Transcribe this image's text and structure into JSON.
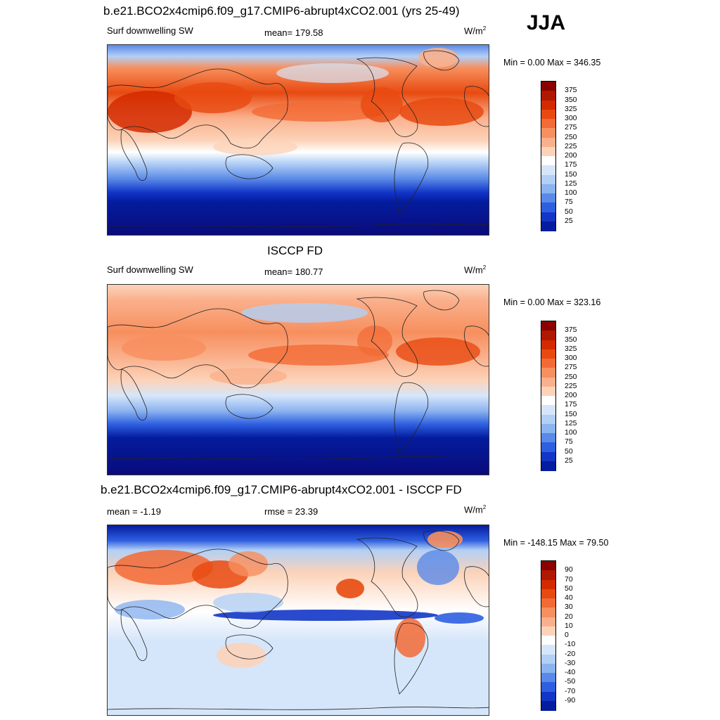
{
  "season": "JJA",
  "panels": [
    {
      "title": "b.e21.BCO2x4cmip6.f09_g17.CMIP6-abrupt4xCO2.001 (yrs 25-49)",
      "left_label": "Surf downwelling SW",
      "center_label": "mean= 179.58",
      "units": "W/m",
      "units_sup": "2",
      "minmax": "Min =   0.00 Max = 346.35"
    },
    {
      "title": "ISCCP FD",
      "left_label": "Surf downwelling SW",
      "center_label": "mean= 180.77",
      "units": "W/m",
      "units_sup": "2",
      "minmax": "Min =   0.00 Max = 323.16"
    },
    {
      "title": "b.e21.BCO2x4cmip6.f09_g17.CMIP6-abrupt4xCO2.001 - ISCCP FD",
      "left_label": "mean =  -1.19",
      "center_label": "rmse =  23.39",
      "units": "W/m",
      "units_sup": "2",
      "minmax": "Min = -148.15 Max =  79.50"
    }
  ],
  "colorbars": {
    "abs": {
      "ticks": [
        "375",
        "350",
        "325",
        "300",
        "275",
        "250",
        "225",
        "200",
        "175",
        "150",
        "125",
        "100",
        "75",
        "50",
        "25"
      ],
      "colors": [
        "#8b0000",
        "#b01800",
        "#d42a00",
        "#e84a10",
        "#f26a35",
        "#f78f5e",
        "#fab08c",
        "#fcd3b9",
        "#ffffff",
        "#d6e6fa",
        "#b2cff5",
        "#8bb3f0",
        "#5a8ae8",
        "#2e5fe0",
        "#1236c8",
        "#041c9e"
      ]
    },
    "diff": {
      "ticks": [
        "90",
        "70",
        "50",
        "40",
        "30",
        "20",
        "10",
        "0",
        "-10",
        "-20",
        "-30",
        "-40",
        "-50",
        "-70",
        "-90"
      ],
      "colors": [
        "#8b0000",
        "#b01800",
        "#d42a00",
        "#e84a10",
        "#f26a35",
        "#f78f5e",
        "#fab08c",
        "#fcd3b9",
        "#ffffff",
        "#d6e6fa",
        "#b2cff5",
        "#8bb3f0",
        "#5a8ae8",
        "#2e5fe0",
        "#1236c8",
        "#041c9e"
      ]
    }
  }
}
